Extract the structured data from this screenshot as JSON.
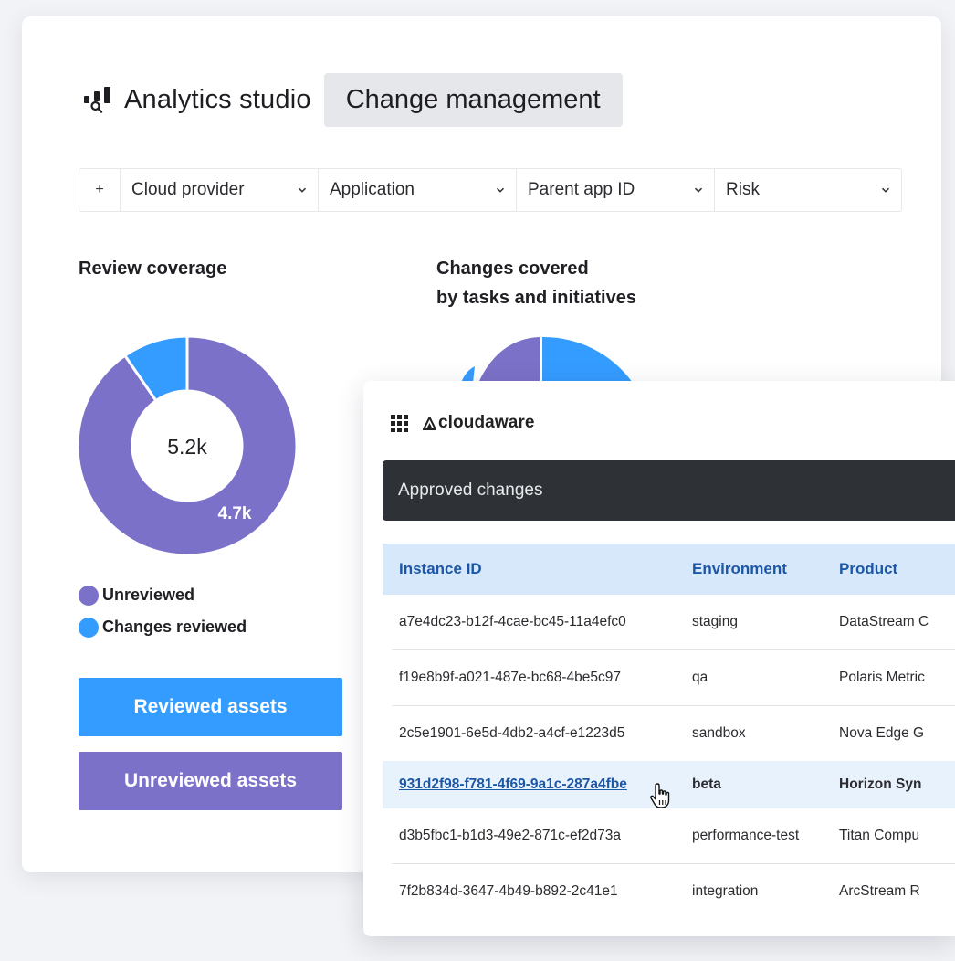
{
  "header": {
    "app_title": "Analytics studio",
    "page_title": "Change management"
  },
  "filters": {
    "add_label": "+",
    "items": [
      {
        "label": "Cloud provider"
      },
      {
        "label": "Application"
      },
      {
        "label": "Parent app ID"
      },
      {
        "label": "Risk"
      }
    ]
  },
  "review_coverage": {
    "title": "Review coverage",
    "center_value": "5.2k",
    "slice_label": "4.7k",
    "legend": [
      {
        "label": "Unreviewed",
        "color": "#7b71c8"
      },
      {
        "label": "Changes reviewed",
        "color": "#359cff"
      }
    ]
  },
  "changes_covered": {
    "title_line1": "Changes covered",
    "title_line2": "by tasks and initiatives"
  },
  "buttons": {
    "reviewed": "Reviewed assets",
    "unreviewed": "Unreviewed assets"
  },
  "colors": {
    "purple": "#7b71c8",
    "blue": "#359cff",
    "dark_bar": "#2e3236",
    "link": "#1c57a6",
    "header_row": "#d7e8fb"
  },
  "table_panel": {
    "brand": "cloudaware",
    "section_title": "Approved changes",
    "columns": [
      "Instance ID",
      "Environment",
      "Product"
    ],
    "rows": [
      {
        "id": "a7e4dc23-b12f-4cae-bc45-11a4efc0",
        "env": "staging",
        "product": "DataStream C"
      },
      {
        "id": "f19e8b9f-a021-487e-bc68-4be5c97",
        "env": "qa",
        "product": "Polaris Metric"
      },
      {
        "id": "2c5e1901-6e5d-4db2-a4cf-e1223d5",
        "env": "sandbox",
        "product": "Nova Edge G"
      },
      {
        "id": "931d2f98-f781-4f69-9a1c-287a4fbe",
        "env": "beta",
        "product": "Horizon Syn"
      },
      {
        "id": "d3b5fbc1-b1d3-49e2-871c-ef2d73a",
        "env": "performance-test",
        "product": "Titan Compu"
      },
      {
        "id": "7f2b834d-3647-4b49-b892-2c41e1",
        "env": "integration",
        "product": "ArcStream R"
      }
    ]
  },
  "chart_data": [
    {
      "type": "pie",
      "title": "Review coverage",
      "center_label": "5.2k",
      "categories": [
        "Unreviewed",
        "Changes reviewed"
      ],
      "values": [
        4.7,
        0.5
      ],
      "data_labels": [
        "4.7k",
        ""
      ]
    }
  ]
}
